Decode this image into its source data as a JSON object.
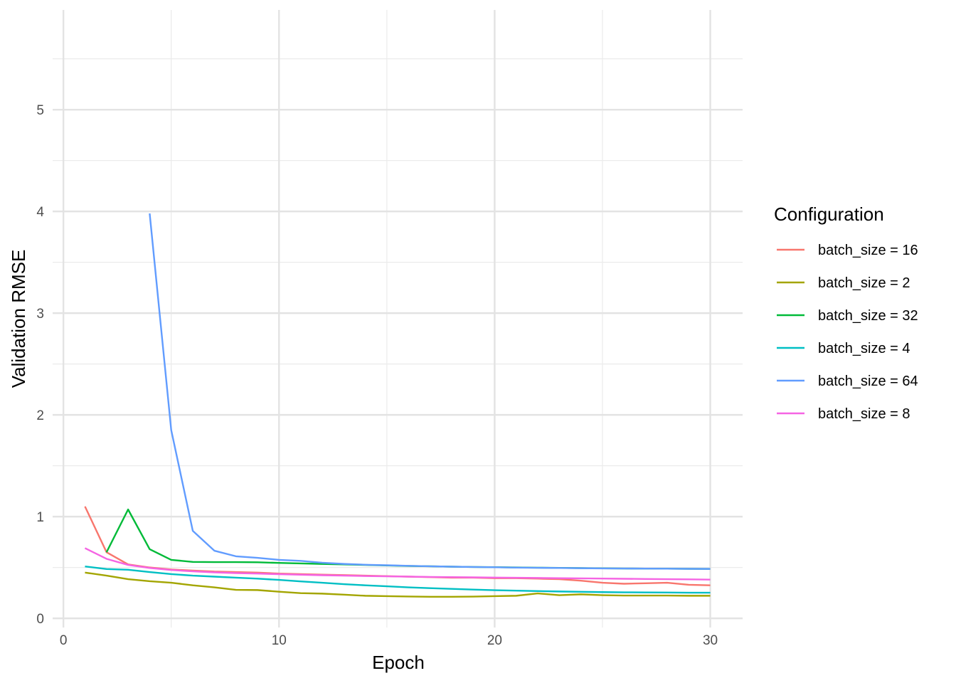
{
  "chart_data": {
    "type": "line",
    "xlabel": "Epoch",
    "ylabel": "Validation RMSE",
    "xlim": [
      0,
      30
    ],
    "ylim": [
      0,
      5.5
    ],
    "x_ticks": [
      0,
      10,
      20,
      30
    ],
    "y_ticks": [
      0,
      1,
      2,
      3,
      4,
      5
    ],
    "grid": true,
    "legend": {
      "title": "Configuration",
      "placement": "right"
    },
    "series": [
      {
        "name": "batch_size = 16",
        "color": "#F8766D",
        "x": [
          1,
          2,
          3,
          4,
          5,
          6,
          7,
          8,
          9,
          10,
          11,
          12,
          13,
          14,
          15,
          16,
          17,
          18,
          19,
          20,
          21,
          22,
          23,
          24,
          25,
          26,
          27,
          28,
          29,
          30
        ],
        "y": [
          1.1,
          0.65,
          0.53,
          0.5,
          0.48,
          0.47,
          0.46,
          0.455,
          0.45,
          0.44,
          0.435,
          0.43,
          0.425,
          0.42,
          0.415,
          0.41,
          0.405,
          0.4,
          0.4,
          0.395,
          0.395,
          0.39,
          0.385,
          0.37,
          0.35,
          0.34,
          0.345,
          0.35,
          0.33,
          0.325
        ]
      },
      {
        "name": "batch_size = 2",
        "color": "#A3A500",
        "x": [
          1,
          2,
          3,
          4,
          5,
          6,
          7,
          8,
          9,
          10,
          11,
          12,
          13,
          14,
          15,
          16,
          17,
          18,
          19,
          20,
          21,
          22,
          23,
          24,
          25,
          26,
          27,
          28,
          29,
          30
        ],
        "y": [
          0.45,
          0.42,
          0.385,
          0.365,
          0.35,
          0.325,
          0.305,
          0.28,
          0.278,
          0.262,
          0.248,
          0.243,
          0.233,
          0.222,
          0.218,
          0.215,
          0.212,
          0.212,
          0.214,
          0.218,
          0.222,
          0.245,
          0.228,
          0.236,
          0.228,
          0.224,
          0.224,
          0.224,
          0.222,
          0.222
        ]
      },
      {
        "name": "batch_size = 32",
        "color": "#00BA38",
        "x": [
          2,
          3,
          4,
          5,
          6,
          7,
          8,
          9,
          10,
          11,
          12,
          13,
          14,
          15,
          16,
          17,
          18,
          19,
          20,
          21,
          22,
          23,
          24,
          25,
          26,
          27,
          28,
          29,
          30
        ],
        "y": [
          0.65,
          1.07,
          0.68,
          0.575,
          0.555,
          0.553,
          0.553,
          0.551,
          0.545,
          0.54,
          0.535,
          0.53,
          0.525,
          0.52,
          0.515,
          0.512,
          0.508,
          0.505,
          0.503,
          0.5,
          0.498,
          0.496,
          0.494,
          0.492,
          0.49,
          0.489,
          0.488,
          0.487,
          0.486
        ]
      },
      {
        "name": "batch_size = 4",
        "color": "#00BFC4",
        "x": [
          1,
          2,
          3,
          4,
          5,
          6,
          7,
          8,
          9,
          10,
          11,
          12,
          13,
          14,
          15,
          16,
          17,
          18,
          19,
          20,
          21,
          22,
          23,
          24,
          25,
          26,
          27,
          28,
          29,
          30
        ],
        "y": [
          0.51,
          0.485,
          0.478,
          0.455,
          0.435,
          0.42,
          0.41,
          0.4,
          0.39,
          0.378,
          0.363,
          0.35,
          0.336,
          0.325,
          0.315,
          0.305,
          0.297,
          0.29,
          0.283,
          0.277,
          0.272,
          0.268,
          0.264,
          0.261,
          0.258,
          0.256,
          0.255,
          0.254,
          0.252,
          0.252
        ]
      },
      {
        "name": "batch_size = 64",
        "color": "#619CFF",
        "x": [
          4,
          5,
          6,
          7,
          8,
          9,
          10,
          11,
          12,
          13,
          14,
          15,
          16,
          17,
          18,
          19,
          20,
          21,
          22,
          23,
          24,
          25,
          26,
          27,
          28,
          29,
          30
        ],
        "y": [
          3.98,
          1.85,
          0.86,
          0.665,
          0.61,
          0.595,
          0.575,
          0.565,
          0.547,
          0.535,
          0.527,
          0.522,
          0.516,
          0.512,
          0.508,
          0.505,
          0.502,
          0.499,
          0.497,
          0.495,
          0.493,
          0.491,
          0.49,
          0.489,
          0.488,
          0.487,
          0.486
        ]
      },
      {
        "name": "batch_size = 8",
        "color": "#F564E3",
        "x": [
          1,
          2,
          3,
          4,
          5,
          6,
          7,
          8,
          9,
          10,
          11,
          12,
          13,
          14,
          15,
          16,
          17,
          18,
          19,
          20,
          21,
          22,
          23,
          24,
          25,
          26,
          27,
          28,
          29,
          30
        ],
        "y": [
          0.69,
          0.585,
          0.525,
          0.495,
          0.475,
          0.462,
          0.452,
          0.445,
          0.44,
          0.434,
          0.429,
          0.424,
          0.42,
          0.416,
          0.413,
          0.41,
          0.407,
          0.405,
          0.403,
          0.401,
          0.399,
          0.397,
          0.395,
          0.393,
          0.391,
          0.389,
          0.387,
          0.385,
          0.383,
          0.381
        ]
      }
    ]
  }
}
